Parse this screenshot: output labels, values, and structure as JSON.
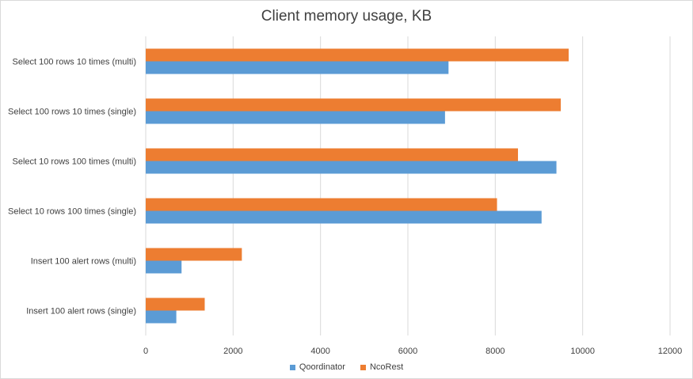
{
  "chart_data": {
    "type": "bar",
    "orientation": "horizontal",
    "title": "Client memory usage, KB",
    "categories": [
      "Insert 100 alert rows (single)",
      "Insert 100 alert rows (multi)",
      "Select 10 rows 100 times (single)",
      "Select 10 rows 100 times (multi)",
      "Select 100 rows 10 times (single)",
      "Select 100 rows 10 times (multi)"
    ],
    "series": [
      {
        "name": "Qoordinator",
        "color": "#5b9bd5",
        "values": [
          700,
          820,
          9060,
          9400,
          6850,
          6930
        ]
      },
      {
        "name": "NcoRest",
        "color": "#ed7d31",
        "values": [
          1350,
          2200,
          8040,
          8520,
          9500,
          9680
        ]
      }
    ],
    "xlim": [
      0,
      12000
    ],
    "xticks": [
      0,
      2000,
      4000,
      6000,
      8000,
      10000,
      12000
    ],
    "grid": true,
    "legend_position": "bottom"
  }
}
